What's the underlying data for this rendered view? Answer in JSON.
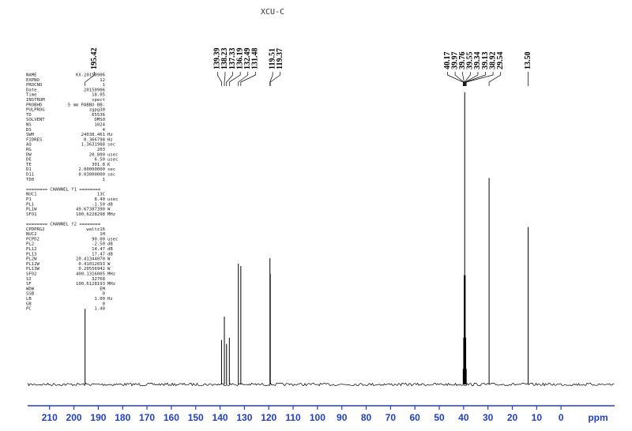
{
  "chart_data": {
    "type": "nmr",
    "title": "XCU-C",
    "xlabel": "ppm",
    "xlim": [
      219,
      -22
    ],
    "xticks": [
      210,
      200,
      190,
      180,
      170,
      160,
      150,
      140,
      130,
      120,
      110,
      100,
      90,
      80,
      70,
      60,
      50,
      40,
      30,
      20,
      10,
      0
    ],
    "ylim": [
      0,
      380
    ],
    "color": "#000000",
    "axis_color": "#1f3fc8",
    "series": [
      {
        "name": "13C",
        "color": "#000000",
        "x": [
          195.42,
          139.39,
          138.23,
          137.33,
          136.19,
          132.49,
          131.48,
          119.51,
          119.37,
          40.17,
          39.97,
          39.76,
          39.55,
          39.34,
          39.13,
          38.92,
          29.54,
          13.5
        ],
        "values": [
          97,
          57,
          87,
          52,
          60,
          155,
          152,
          162,
          142,
          20,
          60,
          140,
          375,
          140,
          60,
          20,
          265,
          202
        ],
        "x_labels": [
          "195.42",
          "139.39",
          "138.23",
          "137.33",
          "136.19",
          "132.49",
          "131.48",
          "119.51",
          "119.37",
          "40.17",
          "39.97",
          "39.76",
          "39.55",
          "39.34",
          "39.13",
          "38.92",
          "29.54",
          "13.50"
        ]
      }
    ]
  },
  "parameters": [
    {
      "rows": [
        [
          "NAME",
          "KX-20150906"
        ],
        [
          "EXPNO",
          "12"
        ],
        [
          "PROCNO",
          "1"
        ],
        [
          "Date_",
          "20150906"
        ],
        [
          "Time",
          "18.05"
        ],
        [
          "INSTRUM",
          "spect"
        ],
        [
          "PROBHD",
          "5 mm PABBO BB-"
        ],
        [
          "PULPROG",
          "zgpg30"
        ],
        [
          "TD",
          "65536"
        ],
        [
          "SOLVENT",
          "DMSO"
        ],
        [
          "NS",
          "1024"
        ],
        [
          "DS",
          "4"
        ],
        [
          "SWH",
          "24038.461",
          "Hz"
        ],
        [
          "FIDRES",
          "0.366798",
          "Hz"
        ],
        [
          "AQ",
          "1.3631988",
          "sec"
        ],
        [
          "RG",
          "203"
        ],
        [
          "DW",
          "20.800",
          "usec"
        ],
        [
          "DE",
          "6.50",
          "usec"
        ],
        [
          "TE",
          "301.8",
          "K"
        ],
        [
          "D1",
          "2.00000000",
          "sec"
        ],
        [
          "D11",
          "0.03000000",
          "sec"
        ],
        [
          "TD0",
          "1"
        ]
      ]
    },
    {
      "header": "======== CHANNEL f1 ========",
      "rows": [
        [
          "NUC1",
          "13C"
        ],
        [
          "P1",
          "8.40",
          "usec"
        ],
        [
          "PL1",
          "-1.50",
          "dB"
        ],
        [
          "PL1W",
          "49.67387390",
          "W"
        ],
        [
          "SFO1",
          "100.6228298",
          "MHz"
        ]
      ]
    },
    {
      "header": "======== CHANNEL f2 ========",
      "rows": [
        [
          "CPDPRG2",
          "waltz16"
        ],
        [
          "NUC2",
          "1H"
        ],
        [
          "PCPD2",
          "90.00",
          "usec"
        ],
        [
          "PL2",
          "-2.50",
          "dB"
        ],
        [
          "PL12",
          "14.47",
          "dB"
        ],
        [
          "PL13",
          "17.47",
          "dB"
        ],
        [
          "PL2W",
          "20.41344070",
          "W"
        ],
        [
          "PL12W",
          "0.41012693",
          "W"
        ],
        [
          "PL13W",
          "0.20556942",
          "W"
        ],
        [
          "SFO2",
          "400.1316005",
          "MHz"
        ],
        [
          "SI",
          "32768"
        ],
        [
          "SF",
          "100.6128193",
          "MHz"
        ],
        [
          "WDW",
          "EM"
        ],
        [
          "SSB",
          "0"
        ],
        [
          "LB",
          "1.00",
          "Hz"
        ],
        [
          "GB",
          "0"
        ],
        [
          "PC",
          "1.40"
        ]
      ]
    }
  ]
}
